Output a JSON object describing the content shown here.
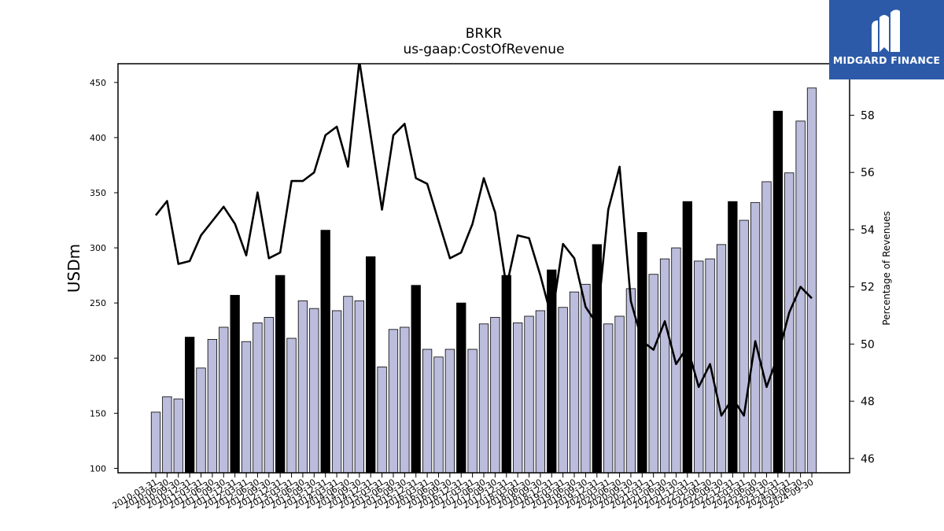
{
  "chart_data": {
    "type": "bar",
    "title": "BRKR",
    "subtitle": "us-gaap:CostOfRevenue",
    "ylabel": "USDm",
    "y2label": "Percentage of Revenues",
    "ylim": [
      96,
      467
    ],
    "y2lim": [
      45.5,
      59.8
    ],
    "yticks": [
      100,
      150,
      200,
      250,
      300,
      350,
      400,
      450
    ],
    "y2ticks": [
      46,
      48,
      50,
      52,
      54,
      56,
      58
    ],
    "categories": [
      "2010-03-31",
      "2010-06-30",
      "2010-09-30",
      "2010-12-31",
      "2011-03-31",
      "2011-06-30",
      "2011-09-30",
      "2011-12-31",
      "2012-03-31",
      "2012-06-30",
      "2012-09-30",
      "2012-12-31",
      "2013-03-31",
      "2013-06-30",
      "2013-09-30",
      "2013-12-31",
      "2014-03-31",
      "2014-06-30",
      "2014-09-30",
      "2014-12-31",
      "2015-03-31",
      "2015-06-30",
      "2015-09-30",
      "2015-12-31",
      "2016-03-31",
      "2016-06-30",
      "2016-09-30",
      "2016-12-31",
      "2017-03-31",
      "2017-06-30",
      "2017-09-30",
      "2017-12-31",
      "2018-03-31",
      "2018-06-30",
      "2018-09-30",
      "2018-12-31",
      "2019-03-31",
      "2019-06-30",
      "2019-09-30",
      "2019-12-31",
      "2020-03-31",
      "2020-06-30",
      "2020-09-30",
      "2020-12-31",
      "2021-03-31",
      "2021-06-30",
      "2021-09-30",
      "2021-12-31",
      "2022-03-31",
      "2022-06-30",
      "2022-09-30",
      "2022-12-31",
      "2023-03-31",
      "2023-06-30",
      "2023-09-30",
      "2023-12-31",
      "2024-03-31",
      "2024-06-30",
      "2024-09-30"
    ],
    "series": [
      {
        "values": [
          151,
          165,
          163,
          219,
          191,
          217,
          228,
          257,
          215,
          232,
          237,
          275,
          218,
          252,
          245,
          316,
          243,
          256,
          252,
          292,
          192,
          226,
          228,
          266,
          208,
          201,
          208,
          250,
          208,
          231,
          237,
          275,
          232,
          238,
          243,
          280,
          246,
          260,
          267,
          303,
          231,
          238,
          263,
          314,
          276,
          290,
          300,
          342,
          288,
          290,
          303,
          342,
          325,
          341,
          360,
          424,
          368,
          415,
          445
        ],
        "highlight": [
          false,
          false,
          false,
          true,
          false,
          false,
          false,
          true,
          false,
          false,
          false,
          true,
          false,
          false,
          false,
          true,
          false,
          false,
          false,
          true,
          false,
          false,
          false,
          true,
          false,
          false,
          false,
          true,
          false,
          false,
          false,
          true,
          false,
          false,
          false,
          true,
          false,
          false,
          false,
          true,
          false,
          false,
          false,
          true,
          false,
          false,
          false,
          true,
          false,
          false,
          false,
          true,
          false,
          false,
          false,
          true,
          false,
          false,
          false
        ],
        "color": "#bcbddc",
        "highlight_color": "#000000"
      },
      {
        "axis": "right",
        "type": "line",
        "color": "#000000",
        "values": [
          54.5,
          55.0,
          52.8,
          52.9,
          53.8,
          54.3,
          54.8,
          54.2,
          53.1,
          55.3,
          53.0,
          53.2,
          55.7,
          55.7,
          56.0,
          57.3,
          57.6,
          56.2,
          59.9,
          57.3,
          54.7,
          57.3,
          57.7,
          55.8,
          55.6,
          54.3,
          53.0,
          53.2,
          54.2,
          55.8,
          54.6,
          52.0,
          53.8,
          53.7,
          52.4,
          50.9,
          53.5,
          53.0,
          51.3,
          50.7,
          54.7,
          56.2,
          51.5,
          50.1,
          49.8,
          50.8,
          49.3,
          49.9,
          48.5,
          49.3,
          47.5,
          48.1,
          47.5,
          50.1,
          48.5,
          49.6,
          51.1,
          52.0,
          51.6
        ]
      }
    ]
  },
  "branding": {
    "name": "MIDGARD FINANCE",
    "bg_color": "#2c5aa8",
    "icon": "midgard-logo-icon"
  }
}
